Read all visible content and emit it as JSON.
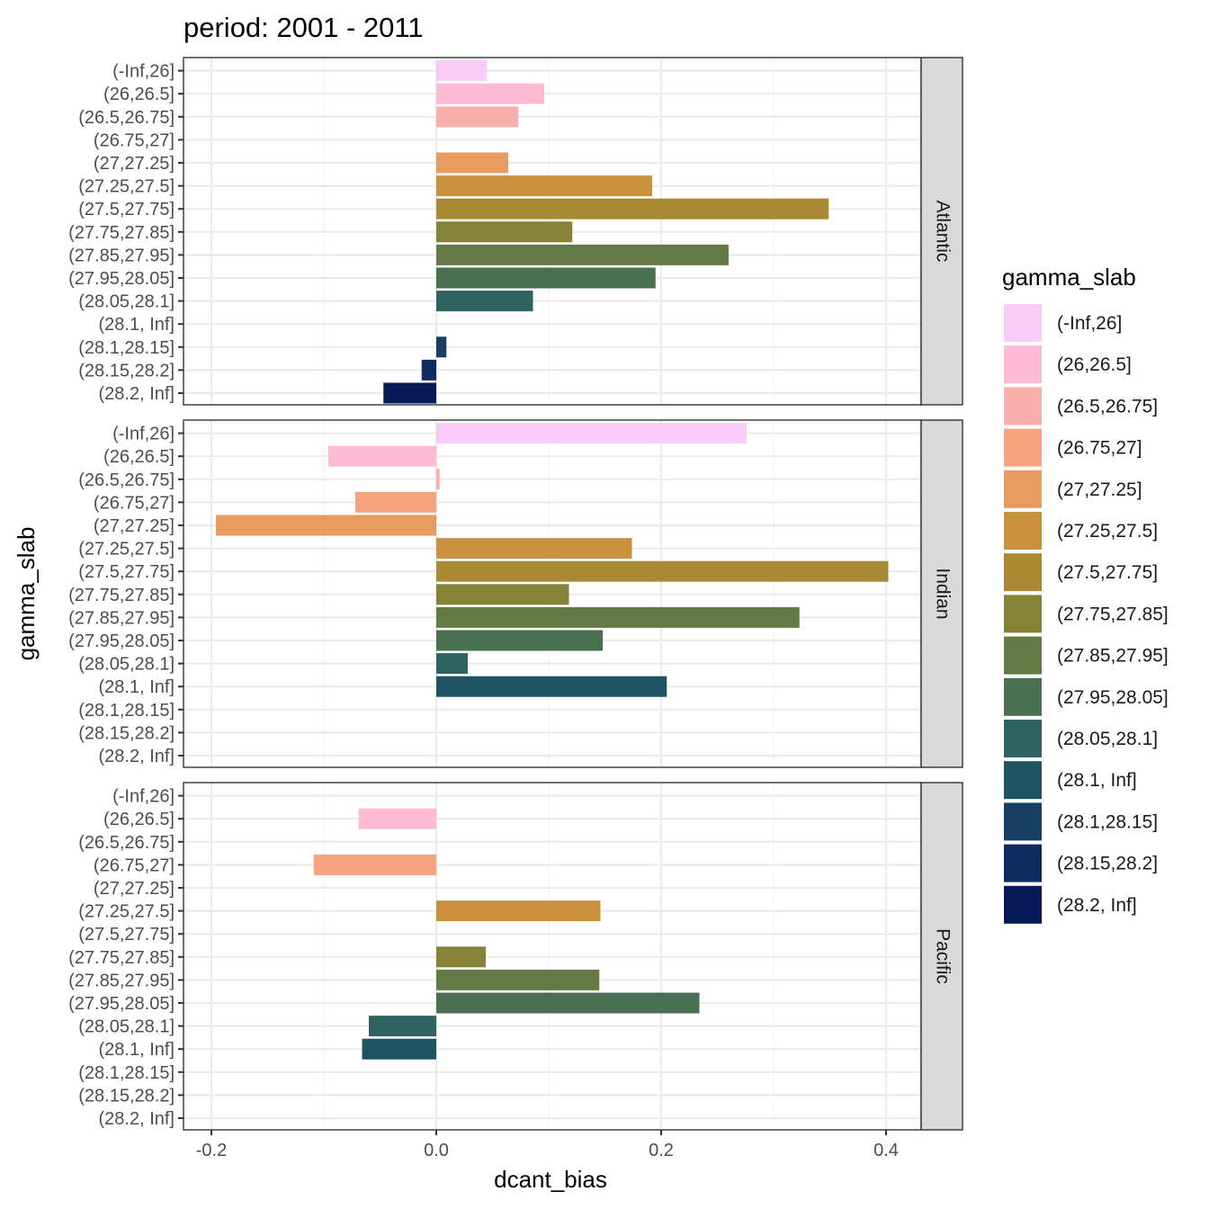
{
  "chart_data": {
    "type": "bar",
    "orientation": "horizontal",
    "title": "period: 2001 - 2011",
    "xlabel": "dcant_bias",
    "ylabel": "gamma_slab",
    "xlim": [
      -0.25,
      0.43
    ],
    "x_ticks": [
      -0.2,
      0.0,
      0.2,
      0.4
    ],
    "x_tick_labels": [
      "-0.2",
      "0.0",
      "0.2",
      "0.4"
    ],
    "grid": true,
    "legend_position": "right",
    "legend_title": "gamma_slab",
    "categories": [
      "(-Inf,26]",
      "(26,26.5]",
      "(26.5,26.75]",
      "(26.75,27]",
      "(27,27.25]",
      "(27.25,27.5]",
      "(27.5,27.75]",
      "(27.75,27.85]",
      "(27.85,27.95]",
      "(27.95,28.05]",
      "(28.05,28.1]",
      "(28.1, Inf]",
      "(28.1,28.15]",
      "(28.15,28.2]",
      "(28.2, Inf]"
    ],
    "colors": [
      "#F9CBF9",
      "#FDBBD3",
      "#FBAFAA",
      "#F8A37F",
      "#E99A5F",
      "#C9913E",
      "#A78A33",
      "#848234",
      "#637A44",
      "#497050",
      "#2F6361",
      "#1E5364",
      "#163F63",
      "#0E2B5D",
      "#061A56"
    ],
    "panels": [
      {
        "name": "Atlantic",
        "values": [
          0.045,
          0.096,
          0.073,
          null,
          0.064,
          0.192,
          0.349,
          0.121,
          0.26,
          0.195,
          0.086,
          null,
          0.009,
          -0.013,
          -0.047
        ]
      },
      {
        "name": "Indian",
        "values": [
          0.276,
          -0.096,
          0.003,
          -0.072,
          -0.196,
          0.174,
          0.402,
          0.118,
          0.323,
          0.148,
          0.028,
          0.205,
          null,
          null,
          null
        ]
      },
      {
        "name": "Pacific",
        "values": [
          null,
          -0.069,
          null,
          -0.109,
          null,
          0.146,
          null,
          0.044,
          0.145,
          0.234,
          -0.06,
          -0.066,
          null,
          null,
          null
        ]
      }
    ]
  }
}
